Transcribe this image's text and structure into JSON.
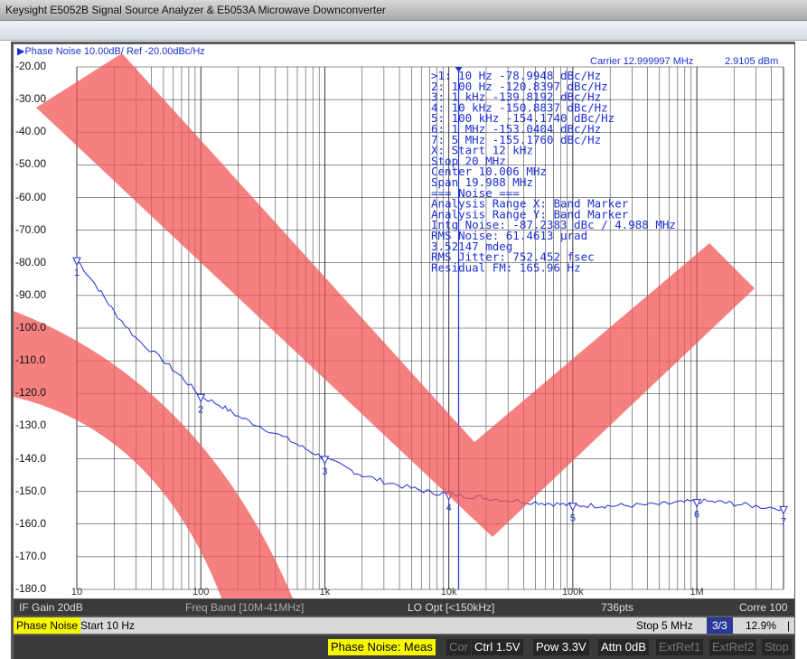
{
  "window": {
    "title": "Keysight E5052B Signal Source Analyzer & E5053A Microwave Downconverter"
  },
  "trace_header": {
    "title": "Phase Noise 10.00dB/ Ref -20.00dBc/Hz",
    "carrier": "Carrier 12.999997 MHz",
    "level": "2.9105 dBm"
  },
  "y_ticks": [
    "-20.00",
    "-30.00",
    "-40.00",
    "-50.00",
    "-60.00",
    "-70.00",
    "-80.00",
    "-90.00",
    "-100.0",
    "-110.0",
    "-120.0",
    "-130.0",
    "-140.0",
    "-150.0",
    "-160.0",
    "-170.0",
    "-180.0"
  ],
  "marker_table": [
    ">1:  10 Hz      -78.9948 dBc/Hz",
    " 2:  100 Hz    -120.8397 dBc/Hz",
    " 3:  1 kHz     -139.8192 dBc/Hz",
    " 4:  10 kHz    -150.8837 dBc/Hz",
    " 5:  100 kHz   -154.1740 dBc/Hz",
    " 6:  1 MHz     -153.0404 dBc/Hz",
    " 7:  5 MHz     -155.1760 dBc/Hz",
    " X: Start 12 kHz",
    "      Stop 20 MHz",
    "    Center 10.006 MHz",
    "      Span 19.988 MHz",
    "=== Noise ===",
    "Analysis Range X: Band Marker",
    "Analysis Range Y: Band Marker",
    "Intg Noise: -87.2383 dBc / 4.988 MHz",
    " RMS Noise: 61.4613 μrad",
    "            3.52147 mdeg",
    "RMS Jitter: 752.452 fsec",
    "Residual FM: 165.96 Hz"
  ],
  "marker_labels": [
    "1",
    "2",
    "3",
    "4",
    "5",
    "6",
    "7"
  ],
  "x_axis_labels": [
    "10",
    "100",
    "1k",
    "10k",
    "100k",
    "1M"
  ],
  "status_bar_1": {
    "if_gain": "IF Gain 20dB",
    "freq_band": "Freq Band [10M-41MHz]",
    "lo_opt": "LO Opt [<150kHz]",
    "points": "736pts",
    "corre": "Corre 100"
  },
  "status_bar_2": {
    "meas": "Phase Noise",
    "start": "Start 10 Hz",
    "stop": "Stop 5 MHz",
    "page": "3/3",
    "pct": "12.9%",
    "sep": "|"
  },
  "softkeys": [
    "Phase Noise: Meas",
    "Cor",
    "Ctrl  1.5V",
    "Pow  3.3V",
    "Attn 0dB",
    "ExtRef1",
    "ExtRef2",
    "Stop"
  ],
  "colors": {
    "trace": "#1b2fd6",
    "overlay": "#f25555",
    "highlight": "#f7f700"
  },
  "chart_data": {
    "type": "line",
    "title": "Phase Noise 10.00dB/ Ref -20.00dBc/Hz",
    "x_scale": "log",
    "xlim": [
      10,
      5000000
    ],
    "ylim": [
      -180,
      -20
    ],
    "ylabel": "",
    "xlabel": "",
    "series": [
      {
        "x": [
          10,
          15,
          20,
          30,
          50,
          70,
          100,
          150,
          200,
          300,
          500,
          700,
          1000,
          1500,
          2000,
          3000,
          5000,
          7000,
          10000,
          15000,
          20000,
          30000,
          50000,
          70000,
          100000,
          150000,
          200000,
          300000,
          500000,
          700000,
          1000000,
          1500000,
          2000000,
          3000000,
          5000000
        ],
        "values": [
          -79,
          -88,
          -95,
          -103,
          -110,
          -115,
          -120.8,
          -124,
          -127,
          -130,
          -134,
          -137,
          -139.8,
          -143,
          -145,
          -147,
          -149,
          -150.2,
          -150.9,
          -151.5,
          -152,
          -152.7,
          -153.3,
          -153.8,
          -154.2,
          -154.3,
          -154.4,
          -154.3,
          -154,
          -153.5,
          -153,
          -153.2,
          -153.8,
          -154.5,
          -155.2
        ]
      }
    ],
    "markers": [
      {
        "id": 1,
        "x": 10,
        "y": -78.9948
      },
      {
        "id": 2,
        "x": 100,
        "y": -120.8397
      },
      {
        "id": 3,
        "x": 1000,
        "y": -139.8192
      },
      {
        "id": 4,
        "x": 10000,
        "y": -150.8837
      },
      {
        "id": 5,
        "x": 100000,
        "y": -154.174
      },
      {
        "id": 6,
        "x": 1000000,
        "y": -153.0404
      },
      {
        "id": 7,
        "x": 5000000,
        "y": -155.176
      }
    ],
    "grid": true
  }
}
